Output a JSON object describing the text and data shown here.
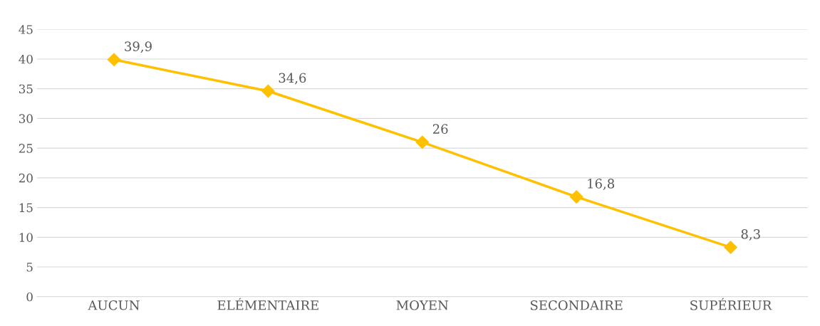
{
  "chart_data": {
    "type": "line",
    "categories": [
      "AUCUN",
      "ELÉMENTAIRE",
      "MOYEN",
      "SECONDAIRE",
      "SUPÉRIEUR"
    ],
    "series": [
      {
        "color": "#ffc000",
        "values": [
          39.9,
          34.6,
          26,
          16.8,
          8.3
        ],
        "value_labels": [
          "39,9",
          "34,6",
          "26",
          "16,8",
          "8,3"
        ]
      }
    ],
    "ylim": [
      0,
      45
    ],
    "yticks": [
      0,
      5,
      10,
      15,
      20,
      25,
      30,
      35,
      40,
      45
    ],
    "grid": "y",
    "marker": "diamond",
    "line_style": "solid",
    "legend": false
  }
}
